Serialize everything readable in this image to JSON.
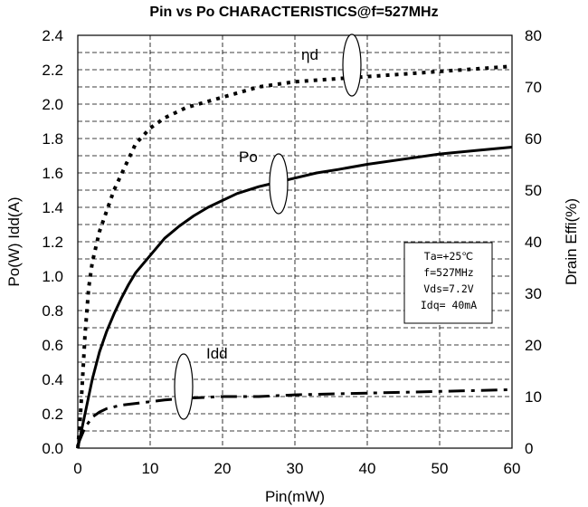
{
  "chart_data": {
    "type": "line",
    "title": "Pin vs Po  CHARACTERISTICS@f=527MHz",
    "xlabel": "Pin(mW)",
    "ylabel": "Po(W)  Idd(A)",
    "y2label": "Drain Effi(%)",
    "xlim": [
      0,
      60
    ],
    "ylim": [
      0,
      2.4
    ],
    "y2lim": [
      0,
      80
    ],
    "xticks": [
      0,
      10,
      20,
      30,
      40,
      50,
      60
    ],
    "yticks": [
      0.0,
      0.2,
      0.4,
      0.6,
      0.8,
      1.0,
      1.2,
      1.4,
      1.6,
      1.8,
      2.0,
      2.2,
      2.4
    ],
    "ytick_labels": [
      "0.0",
      "0.2",
      "0.4",
      "0.6",
      "0.8",
      "1.0",
      "1.2",
      "1.4",
      "1.6",
      "1.8",
      "2.0",
      "2.2",
      "2.4"
    ],
    "y2ticks": [
      0,
      10,
      20,
      30,
      40,
      50,
      60,
      70,
      80
    ],
    "grid": true,
    "series": [
      {
        "name": "Po",
        "axis": "left",
        "style": "solid",
        "x": [
          0,
          1,
          2,
          3,
          4,
          5,
          6,
          7,
          8,
          10,
          12,
          14,
          16,
          18,
          20,
          22,
          25,
          28,
          30,
          33,
          36,
          40,
          45,
          50,
          55,
          60
        ],
        "y": [
          0,
          0.2,
          0.4,
          0.56,
          0.68,
          0.78,
          0.87,
          0.95,
          1.02,
          1.12,
          1.22,
          1.29,
          1.35,
          1.4,
          1.44,
          1.48,
          1.52,
          1.55,
          1.57,
          1.6,
          1.62,
          1.65,
          1.68,
          1.71,
          1.73,
          1.75
        ]
      },
      {
        "name": "ηd",
        "axis": "right",
        "style": "dotted",
        "x": [
          0,
          0.3,
          0.6,
          1,
          1.5,
          2,
          3,
          4,
          5,
          6,
          7,
          8,
          10,
          12,
          15,
          20,
          25,
          30,
          35,
          40,
          45,
          50,
          55,
          60
        ],
        "y": [
          0,
          5,
          12,
          22,
          31,
          36,
          42,
          46,
          50,
          53,
          56,
          59,
          62,
          64,
          66,
          68,
          70,
          71,
          71.5,
          72,
          72.5,
          73,
          73.5,
          74
        ]
      },
      {
        "name": "Idd",
        "axis": "left",
        "style": "dashed",
        "x": [
          0,
          0.5,
          1,
          1.5,
          2,
          3,
          4,
          5,
          6,
          8,
          10,
          12,
          15,
          20,
          25,
          30,
          35,
          40,
          45,
          50,
          55,
          60
        ],
        "y": [
          0.02,
          0.07,
          0.12,
          0.15,
          0.18,
          0.21,
          0.23,
          0.24,
          0.25,
          0.26,
          0.27,
          0.28,
          0.29,
          0.3,
          0.3,
          0.31,
          0.315,
          0.32,
          0.325,
          0.33,
          0.335,
          0.34
        ]
      }
    ],
    "annotations": {
      "eta_label": "ηd",
      "po_label": "Po",
      "idd_label": "Idd"
    },
    "conditions": [
      "Ta=+25℃",
      "f=527MHz",
      "Vds=7.2V",
      "Idq= 40mA"
    ]
  }
}
